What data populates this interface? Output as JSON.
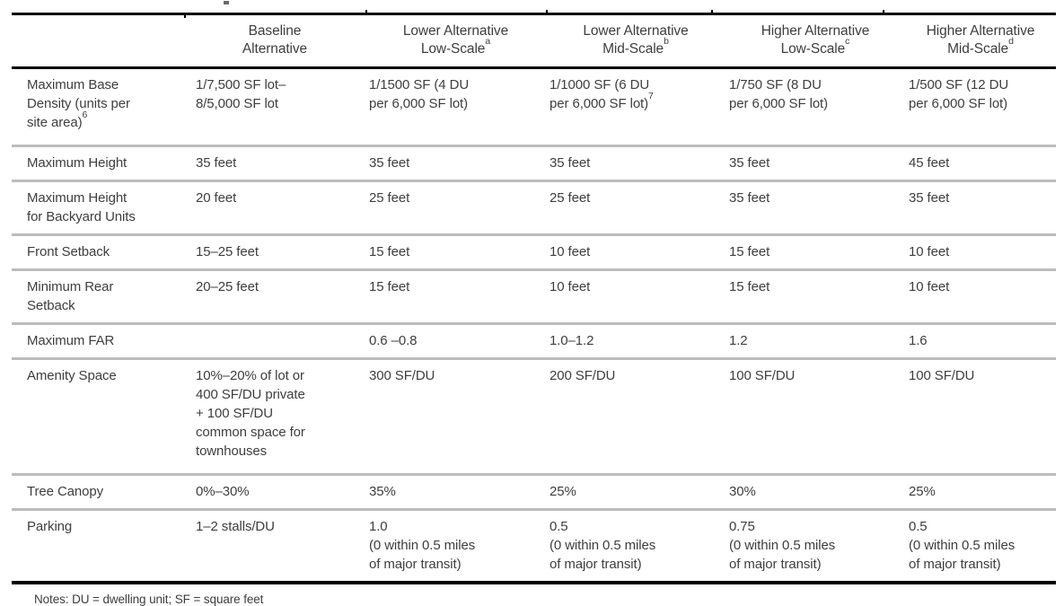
{
  "colors": {
    "text": "#3e3e42",
    "rule_black": "#000000",
    "rule_gray": "#bbbcbd",
    "background": "#ffffff"
  },
  "table": {
    "columns": [
      {
        "text": "",
        "sup": ""
      },
      {
        "text": "Baseline\nAlternative",
        "sup": ""
      },
      {
        "text": "Lower Alternative\nLow-Scale",
        "sup": "a"
      },
      {
        "text": "Lower Alternative\nMid-Scale",
        "sup": "b"
      },
      {
        "text": "Higher Alternative\nLow-Scale",
        "sup": "c"
      },
      {
        "text": "Higher Alternative\nMid-Scale",
        "sup": "d"
      }
    ],
    "rows": [
      {
        "label": {
          "text": "Maximum Base\nDensity (units per\nsite area)",
          "sup": "6"
        },
        "cells": [
          {
            "text": "1/7,500 SF lot–\n8/5,000 SF lot"
          },
          {
            "text": "1/1500 SF (4 DU\nper 6,000 SF lot)"
          },
          {
            "text": "1/1000 SF (6 DU\nper 6,000 SF lot)",
            "sup": "7"
          },
          {
            "text": "1/750 SF (8 DU\nper 6,000 SF lot)"
          },
          {
            "text": "1/500 SF (12 DU\nper 6,000 SF lot)"
          }
        ]
      },
      {
        "label": {
          "text": "Maximum Height"
        },
        "cells": [
          {
            "text": "35 feet"
          },
          {
            "text": "35 feet"
          },
          {
            "text": "35 feet"
          },
          {
            "text": "35 feet"
          },
          {
            "text": "45 feet"
          }
        ]
      },
      {
        "label": {
          "text": "Maximum Height\nfor Backyard Units"
        },
        "cells": [
          {
            "text": "20 feet"
          },
          {
            "text": "25 feet"
          },
          {
            "text": "25 feet"
          },
          {
            "text": "35 feet"
          },
          {
            "text": "35 feet"
          }
        ]
      },
      {
        "label": {
          "text": "Front Setback"
        },
        "cells": [
          {
            "text": "15–25 feet"
          },
          {
            "text": "15 feet"
          },
          {
            "text": "10 feet"
          },
          {
            "text": "15 feet"
          },
          {
            "text": "10 feet"
          }
        ]
      },
      {
        "label": {
          "text": "Minimum Rear\nSetback"
        },
        "cells": [
          {
            "text": "20–25 feet"
          },
          {
            "text": "15 feet"
          },
          {
            "text": "10 feet"
          },
          {
            "text": "15 feet"
          },
          {
            "text": "10 feet"
          }
        ]
      },
      {
        "label": {
          "text": "Maximum FAR"
        },
        "cells": [
          {
            "text": ""
          },
          {
            "text": "0.6 –0.8"
          },
          {
            "text": "1.0–1.2"
          },
          {
            "text": "1.2"
          },
          {
            "text": "1.6"
          }
        ]
      },
      {
        "label": {
          "text": "Amenity Space"
        },
        "cells": [
          {
            "text": "10%–20% of lot or\n400 SF/DU private\n+ 100 SF/DU\ncommon space for\ntownhouses"
          },
          {
            "text": "300 SF/DU"
          },
          {
            "text": "200 SF/DU"
          },
          {
            "text": "100 SF/DU"
          },
          {
            "text": "100 SF/DU"
          }
        ]
      },
      {
        "label": {
          "text": "Tree Canopy"
        },
        "cells": [
          {
            "text": "0%–30%"
          },
          {
            "text": "35%"
          },
          {
            "text": "25%"
          },
          {
            "text": "30%"
          },
          {
            "text": "25%"
          }
        ]
      },
      {
        "label": {
          "text": "Parking"
        },
        "cells": [
          {
            "text": "1–2 stalls/DU"
          },
          {
            "text": "1.0\n(0 within 0.5 miles\nof major transit)"
          },
          {
            "text": "0.5\n(0 within 0.5 miles\nof major transit)"
          },
          {
            "text": "0.75\n(0 within 0.5 miles\nof major transit)"
          },
          {
            "text": "0.5\n(0 within 0.5 miles\nof major transit)"
          }
        ]
      }
    ],
    "notes": "Notes: DU = dwelling unit; SF = square feet"
  }
}
